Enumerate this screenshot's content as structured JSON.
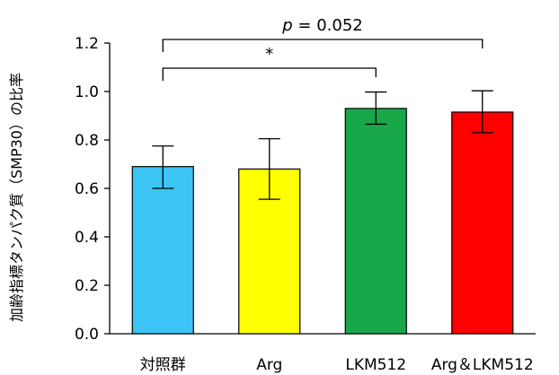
{
  "chart_data": {
    "type": "bar",
    "title": "",
    "xlabel": "",
    "ylabel": "加齢指標タンパク質（SMP30）の比率",
    "ylim": [
      0,
      1.2
    ],
    "yticks": [
      0.0,
      0.2,
      0.4,
      0.6,
      0.8,
      1.0,
      1.2
    ],
    "ytick_labels": [
      "0.0",
      "0.2",
      "0.4",
      "0.6",
      "0.8",
      "1.0",
      "1.2"
    ],
    "grid": false,
    "legend": "none",
    "categories": [
      "対照群",
      "Arg",
      "LKM512",
      "Arg＆LKM512"
    ],
    "values": [
      0.69,
      0.68,
      0.93,
      0.915
    ],
    "error_upper": [
      0.775,
      0.805,
      0.998,
      1.003
    ],
    "error_lower": [
      0.6,
      0.555,
      0.865,
      0.83
    ],
    "colors": [
      "#3cc4f5",
      "#ffff00",
      "#18a84a",
      "#ff0000"
    ],
    "annotations": [
      {
        "text": "p = 0.052",
        "from": 0,
        "to": 3,
        "y_data": 1.22
      },
      {
        "text": "*",
        "from": 0,
        "to": 2,
        "y_data": 1.1
      }
    ]
  }
}
